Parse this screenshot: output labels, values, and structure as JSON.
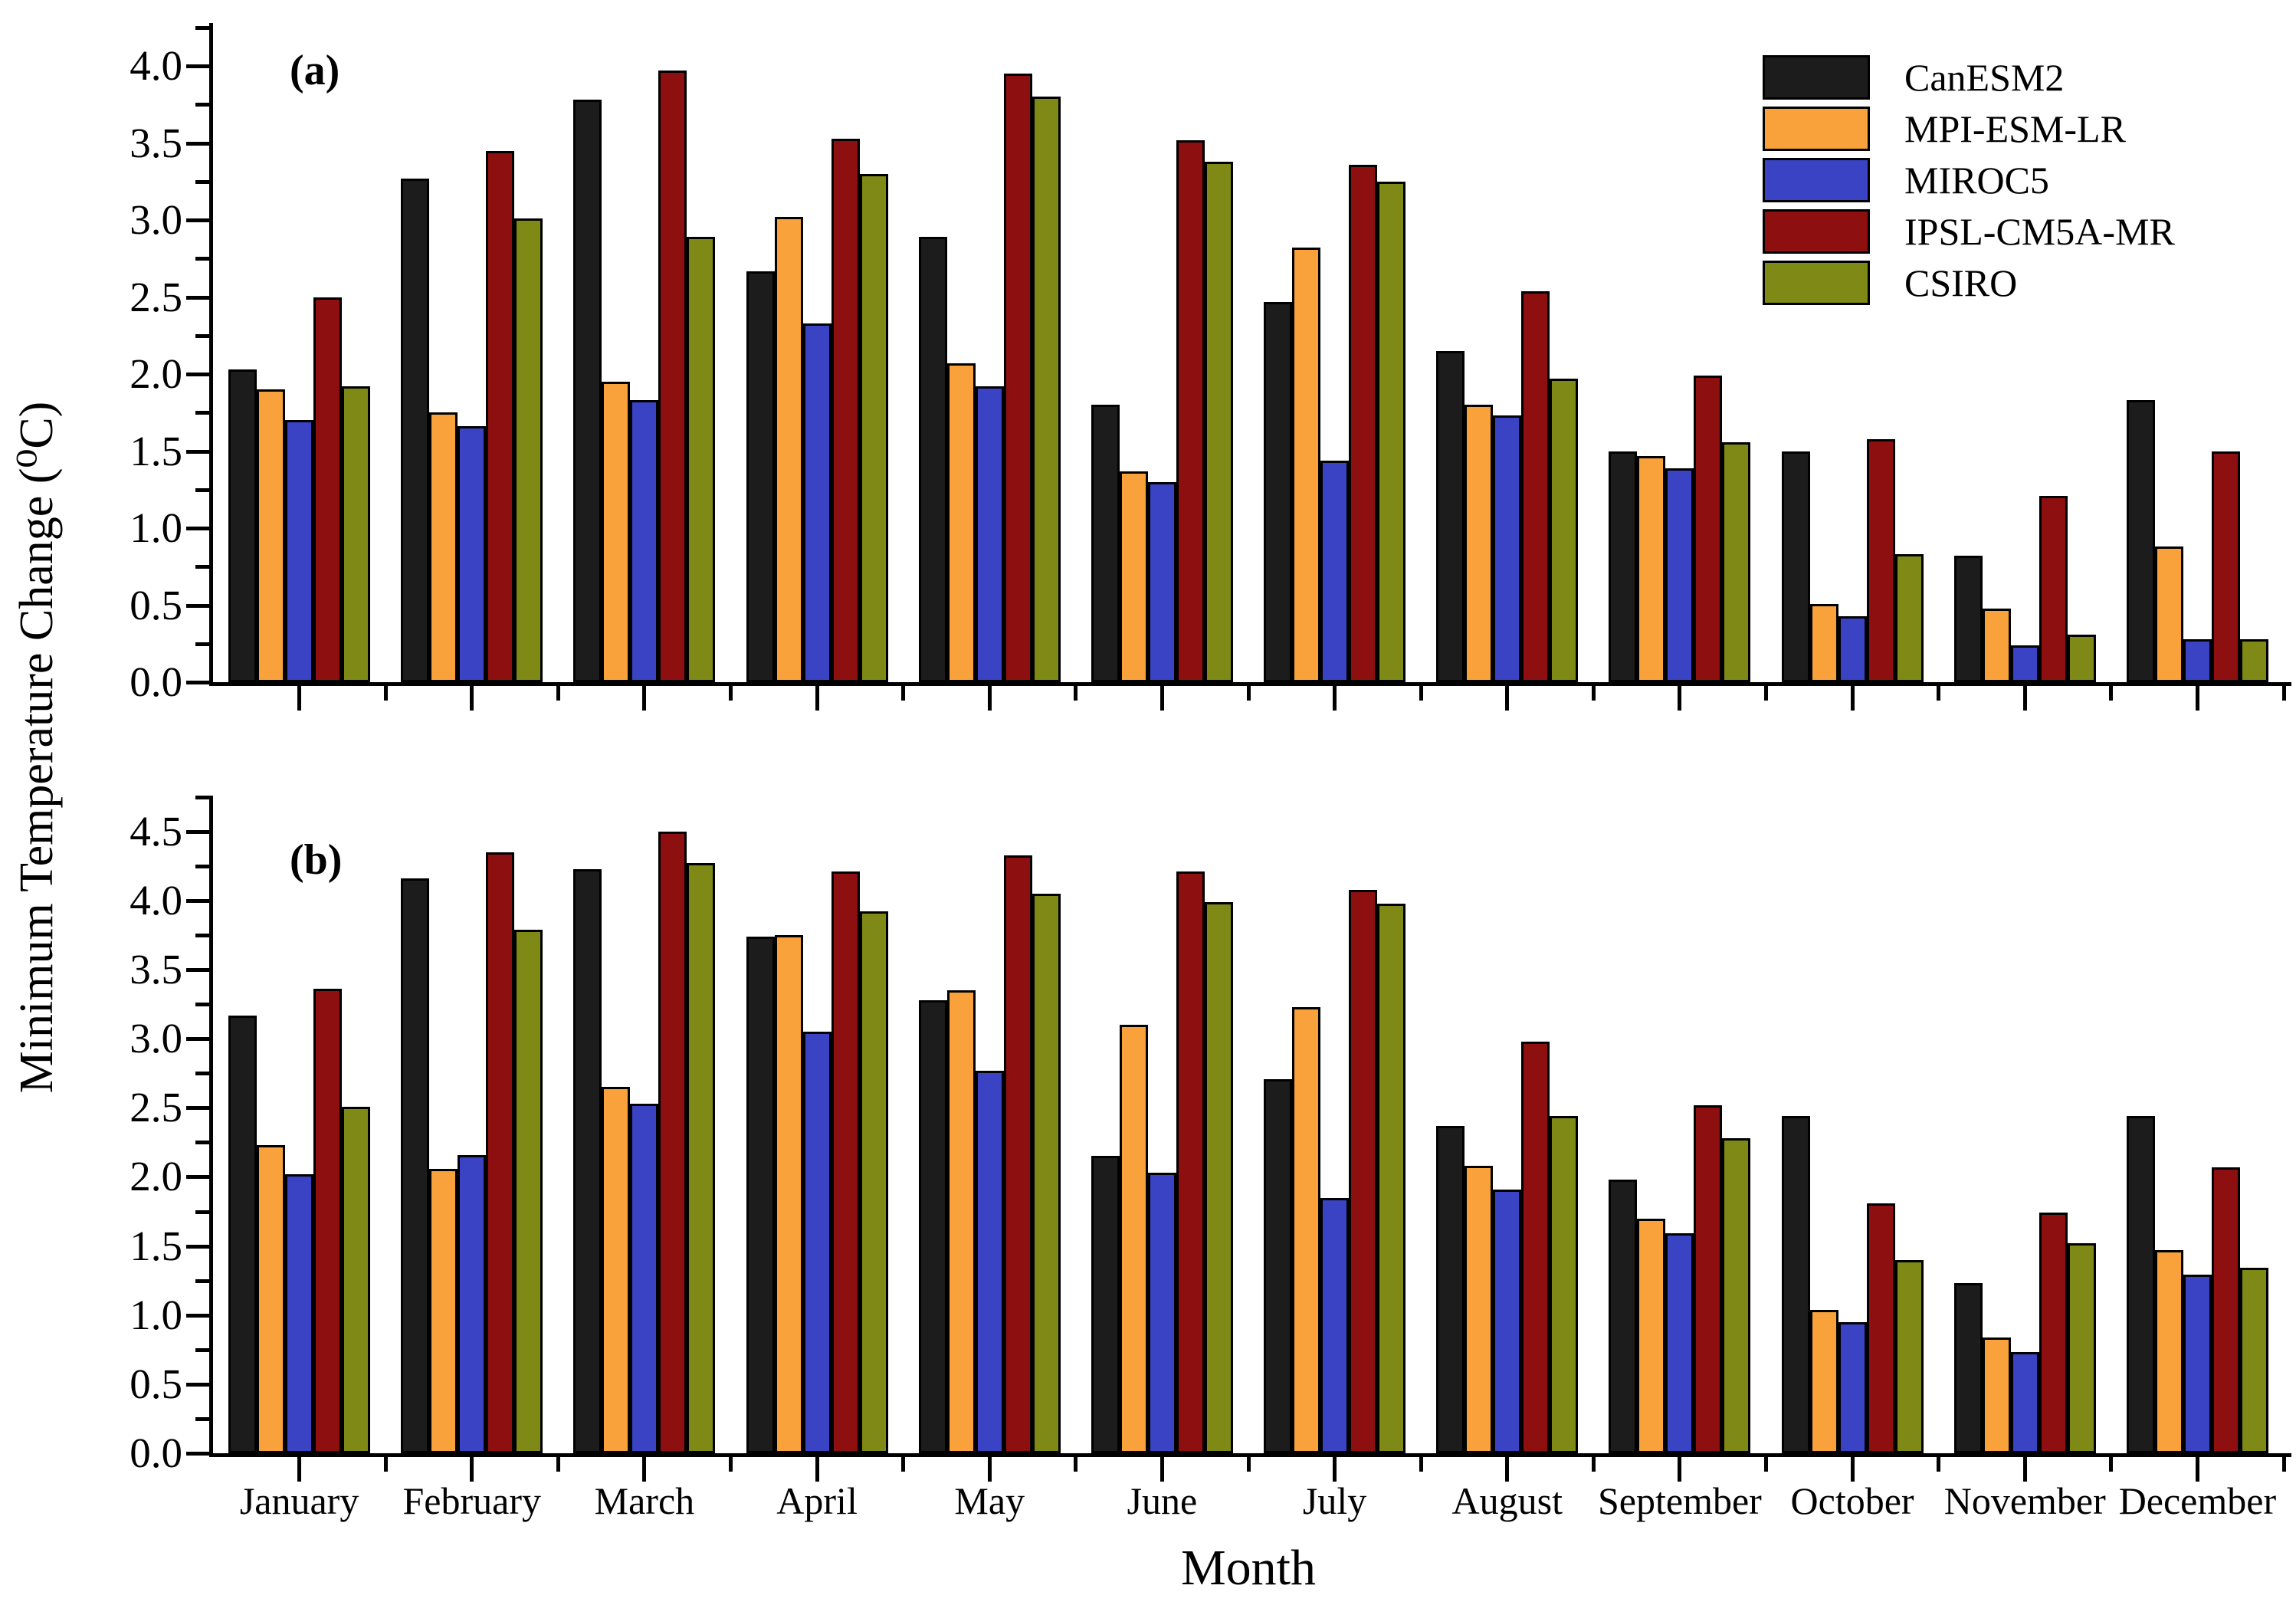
{
  "figure": {
    "ylabel": "Minimum Temperature Change (⁰C)",
    "xlabel": "Month"
  },
  "legend": {
    "items": [
      {
        "label": "CanESM2",
        "color": "#1c1c1c"
      },
      {
        "label": "MPI-ESM-LR",
        "color": "#f9a23c"
      },
      {
        "label": "MIROC5",
        "color": "#3a43c4"
      },
      {
        "label": "IPSL-CM5A-MR",
        "color": "#8e0f0f"
      },
      {
        "label": "CSIRO",
        "color": "#7e8a15"
      }
    ]
  },
  "chart_data": [
    {
      "type": "bar",
      "panel": "(a)",
      "title": "",
      "xlabel": "Month",
      "ylabel": "Minimum Temperature Change (⁰C)",
      "grid": false,
      "legend_position": "top-right",
      "ylim": [
        0,
        4.28
      ],
      "ytick_major_step": 0.5,
      "ytick_minor_step": 0.25,
      "ytick_label_max": 4.0,
      "categories": [
        "January",
        "February",
        "March",
        "April",
        "May",
        "June",
        "July",
        "August",
        "September",
        "October",
        "November",
        "December"
      ],
      "series": [
        {
          "name": "CanESM2",
          "color": "#1c1c1c",
          "values": [
            2.03,
            3.27,
            3.78,
            2.67,
            2.89,
            1.8,
            2.47,
            2.15,
            1.5,
            1.5,
            0.82,
            1.83
          ]
        },
        {
          "name": "MPI-ESM-LR",
          "color": "#f9a23c",
          "values": [
            1.9,
            1.75,
            1.95,
            3.02,
            2.07,
            1.37,
            2.82,
            1.8,
            1.47,
            0.51,
            0.48,
            0.88
          ]
        },
        {
          "name": "MIROC5",
          "color": "#3a43c4",
          "values": [
            1.7,
            1.66,
            1.83,
            2.33,
            1.92,
            1.3,
            1.44,
            1.73,
            1.39,
            0.43,
            0.24,
            0.28
          ]
        },
        {
          "name": "IPSL-CM5A-MR",
          "color": "#8e0f0f",
          "values": [
            2.5,
            3.45,
            3.97,
            3.53,
            3.95,
            3.52,
            3.36,
            2.54,
            1.99,
            1.58,
            1.21,
            1.5
          ]
        },
        {
          "name": "CSIRO",
          "color": "#7e8a15",
          "values": [
            1.92,
            3.01,
            2.89,
            3.3,
            3.8,
            3.38,
            3.25,
            1.97,
            1.56,
            0.83,
            0.31,
            0.28
          ]
        }
      ]
    },
    {
      "type": "bar",
      "panel": "(b)",
      "title": "",
      "xlabel": "Month",
      "ylabel": "Minimum Temperature Change (⁰C)",
      "grid": false,
      "legend_position": "none",
      "ylim": [
        0,
        4.76
      ],
      "ytick_major_step": 0.5,
      "ytick_minor_step": 0.25,
      "ytick_label_max": 4.5,
      "categories": [
        "January",
        "February",
        "March",
        "April",
        "May",
        "June",
        "July",
        "August",
        "September",
        "October",
        "November",
        "December"
      ],
      "series": [
        {
          "name": "CanESM2",
          "color": "#1c1c1c",
          "values": [
            3.17,
            4.16,
            4.23,
            3.74,
            3.28,
            2.15,
            2.71,
            2.37,
            1.98,
            2.44,
            1.23,
            2.44
          ]
        },
        {
          "name": "MPI-ESM-LR",
          "color": "#f9a23c",
          "values": [
            2.23,
            2.06,
            2.65,
            3.75,
            3.35,
            3.1,
            3.23,
            2.08,
            1.7,
            1.04,
            0.84,
            1.47
          ]
        },
        {
          "name": "MIROC5",
          "color": "#3a43c4",
          "values": [
            2.02,
            2.16,
            2.53,
            3.05,
            2.77,
            2.03,
            1.85,
            1.91,
            1.59,
            0.95,
            0.73,
            1.29
          ]
        },
        {
          "name": "IPSL-CM5A-MR",
          "color": "#8e0f0f",
          "values": [
            3.36,
            4.35,
            4.5,
            4.21,
            4.33,
            4.21,
            4.08,
            2.98,
            2.52,
            1.81,
            1.74,
            2.07
          ]
        },
        {
          "name": "CSIRO",
          "color": "#7e8a15",
          "values": [
            2.51,
            3.79,
            4.27,
            3.92,
            4.05,
            3.99,
            3.98,
            2.44,
            2.28,
            1.4,
            1.52,
            1.34
          ]
        }
      ]
    }
  ]
}
